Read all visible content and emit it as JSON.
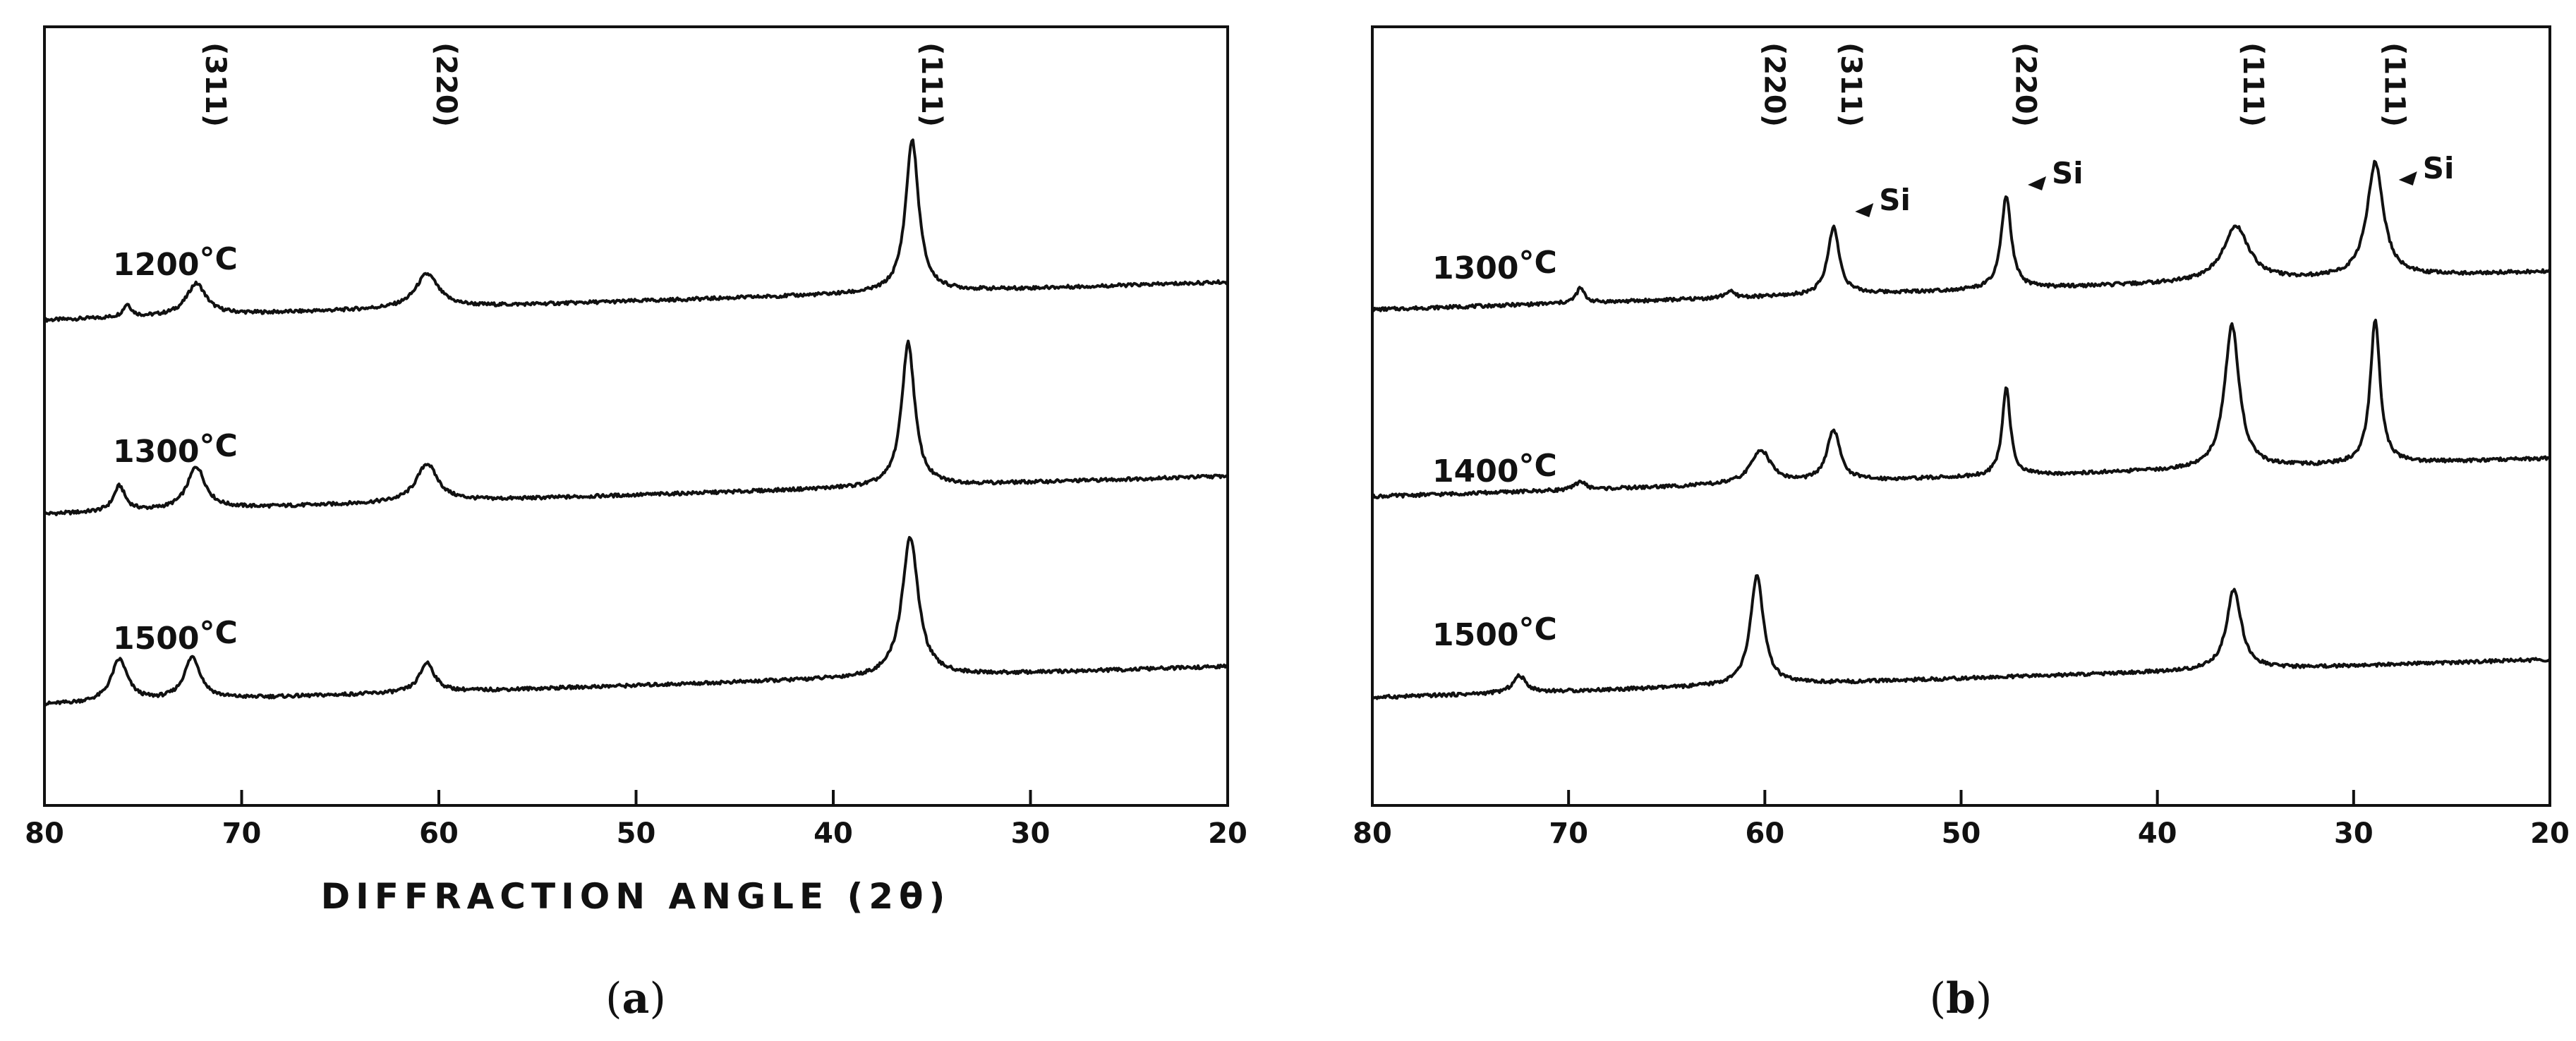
{
  "chart_data": [
    {
      "type": "line",
      "panel": "(a)",
      "caption_letter": "a",
      "xlabel": "DIFFRACTION ANGLE (2θ)",
      "xlim": [
        80,
        20
      ],
      "x_ticks": [
        80,
        70,
        60,
        50,
        40,
        30,
        20
      ],
      "y_ticks_shown": false,
      "peak_labels": [
        {
          "text": "(311)",
          "x": 72.3
        },
        {
          "text": "(220)",
          "x": 60.6
        },
        {
          "text": "(111)",
          "x": 36.0
        }
      ],
      "series": [
        {
          "name": "1200°C",
          "label": {
            "line1": "1200",
            "line2": "°C"
          },
          "baseline": [
            [
              80,
              0.1
            ],
            [
              20,
              1.0
            ]
          ],
          "peaks": [
            [
              75.8,
              0.3,
              0.25
            ],
            [
              72.3,
              0.75,
              0.6
            ],
            [
              60.6,
              0.8,
              0.7
            ],
            [
              36.0,
              3.6,
              0.4
            ]
          ]
        },
        {
          "name": "1300°C",
          "label": {
            "line1": "1300",
            "line2": "°C"
          },
          "baseline": [
            [
              80,
              0.1
            ],
            [
              20,
              1.0
            ]
          ],
          "peaks": [
            [
              76.2,
              0.6,
              0.35
            ],
            [
              72.3,
              1.0,
              0.55
            ],
            [
              60.6,
              0.9,
              0.65
            ],
            [
              36.2,
              3.4,
              0.4
            ]
          ]
        },
        {
          "name": "1500°C",
          "label": {
            "line1": "1500",
            "line2": "°C"
          },
          "baseline": [
            [
              80,
              0.1
            ],
            [
              20,
              1.0
            ]
          ],
          "peaks": [
            [
              76.2,
              1.0,
              0.5
            ],
            [
              72.5,
              1.0,
              0.5
            ],
            [
              60.6,
              0.7,
              0.45
            ],
            [
              36.1,
              3.3,
              0.5
            ]
          ]
        }
      ]
    },
    {
      "type": "line",
      "panel": "(b)",
      "caption_letter": "b",
      "xlabel": "",
      "xlim": [
        80,
        20
      ],
      "x_ticks": [
        80,
        70,
        60,
        50,
        40,
        30,
        20
      ],
      "y_ticks_shown": false,
      "peak_labels": [
        {
          "text": "(220)",
          "x": 60.5
        },
        {
          "text": "(311)",
          "x": 56.6
        },
        {
          "text": "(220)",
          "x": 47.7
        },
        {
          "text": "(111)",
          "x": 36.1
        },
        {
          "text": "(111)",
          "x": 28.9
        }
      ],
      "si_markers": [
        {
          "text": "Si",
          "x": 56.3
        },
        {
          "text": "Si",
          "x": 47.5
        },
        {
          "text": "Si",
          "x": 28.6
        }
      ],
      "series": [
        {
          "name": "1300°C",
          "label": {
            "line1": "1300",
            "line2": "°C"
          },
          "baseline": [
            [
              80,
              0.1
            ],
            [
              20,
              1.0
            ]
          ],
          "peaks": [
            [
              69.4,
              0.35,
              0.25
            ],
            [
              61.8,
              0.15,
              0.3
            ],
            [
              56.5,
              1.6,
              0.35
            ],
            [
              47.7,
              2.2,
              0.3
            ],
            [
              36.0,
              1.3,
              0.8
            ],
            [
              28.9,
              2.7,
              0.5
            ]
          ]
        },
        {
          "name": "1400°C",
          "label": {
            "line1": "1400",
            "line2": "°C"
          },
          "baseline": [
            [
              80,
              0.1
            ],
            [
              20,
              1.0
            ]
          ],
          "peaks": [
            [
              69.4,
              0.2,
              0.3
            ],
            [
              60.2,
              0.8,
              0.6
            ],
            [
              56.5,
              1.2,
              0.4
            ],
            [
              47.7,
              2.1,
              0.25
            ],
            [
              36.2,
              3.4,
              0.45
            ],
            [
              28.9,
              3.4,
              0.3
            ]
          ]
        },
        {
          "name": "1500°C",
          "label": {
            "line1": "1500",
            "line2": "°C"
          },
          "baseline": [
            [
              80,
              0.1
            ],
            [
              20,
              1.0
            ]
          ],
          "peaks": [
            [
              72.5,
              0.4,
              0.4
            ],
            [
              60.4,
              2.6,
              0.4
            ],
            [
              36.1,
              1.9,
              0.45
            ]
          ]
        }
      ]
    }
  ]
}
